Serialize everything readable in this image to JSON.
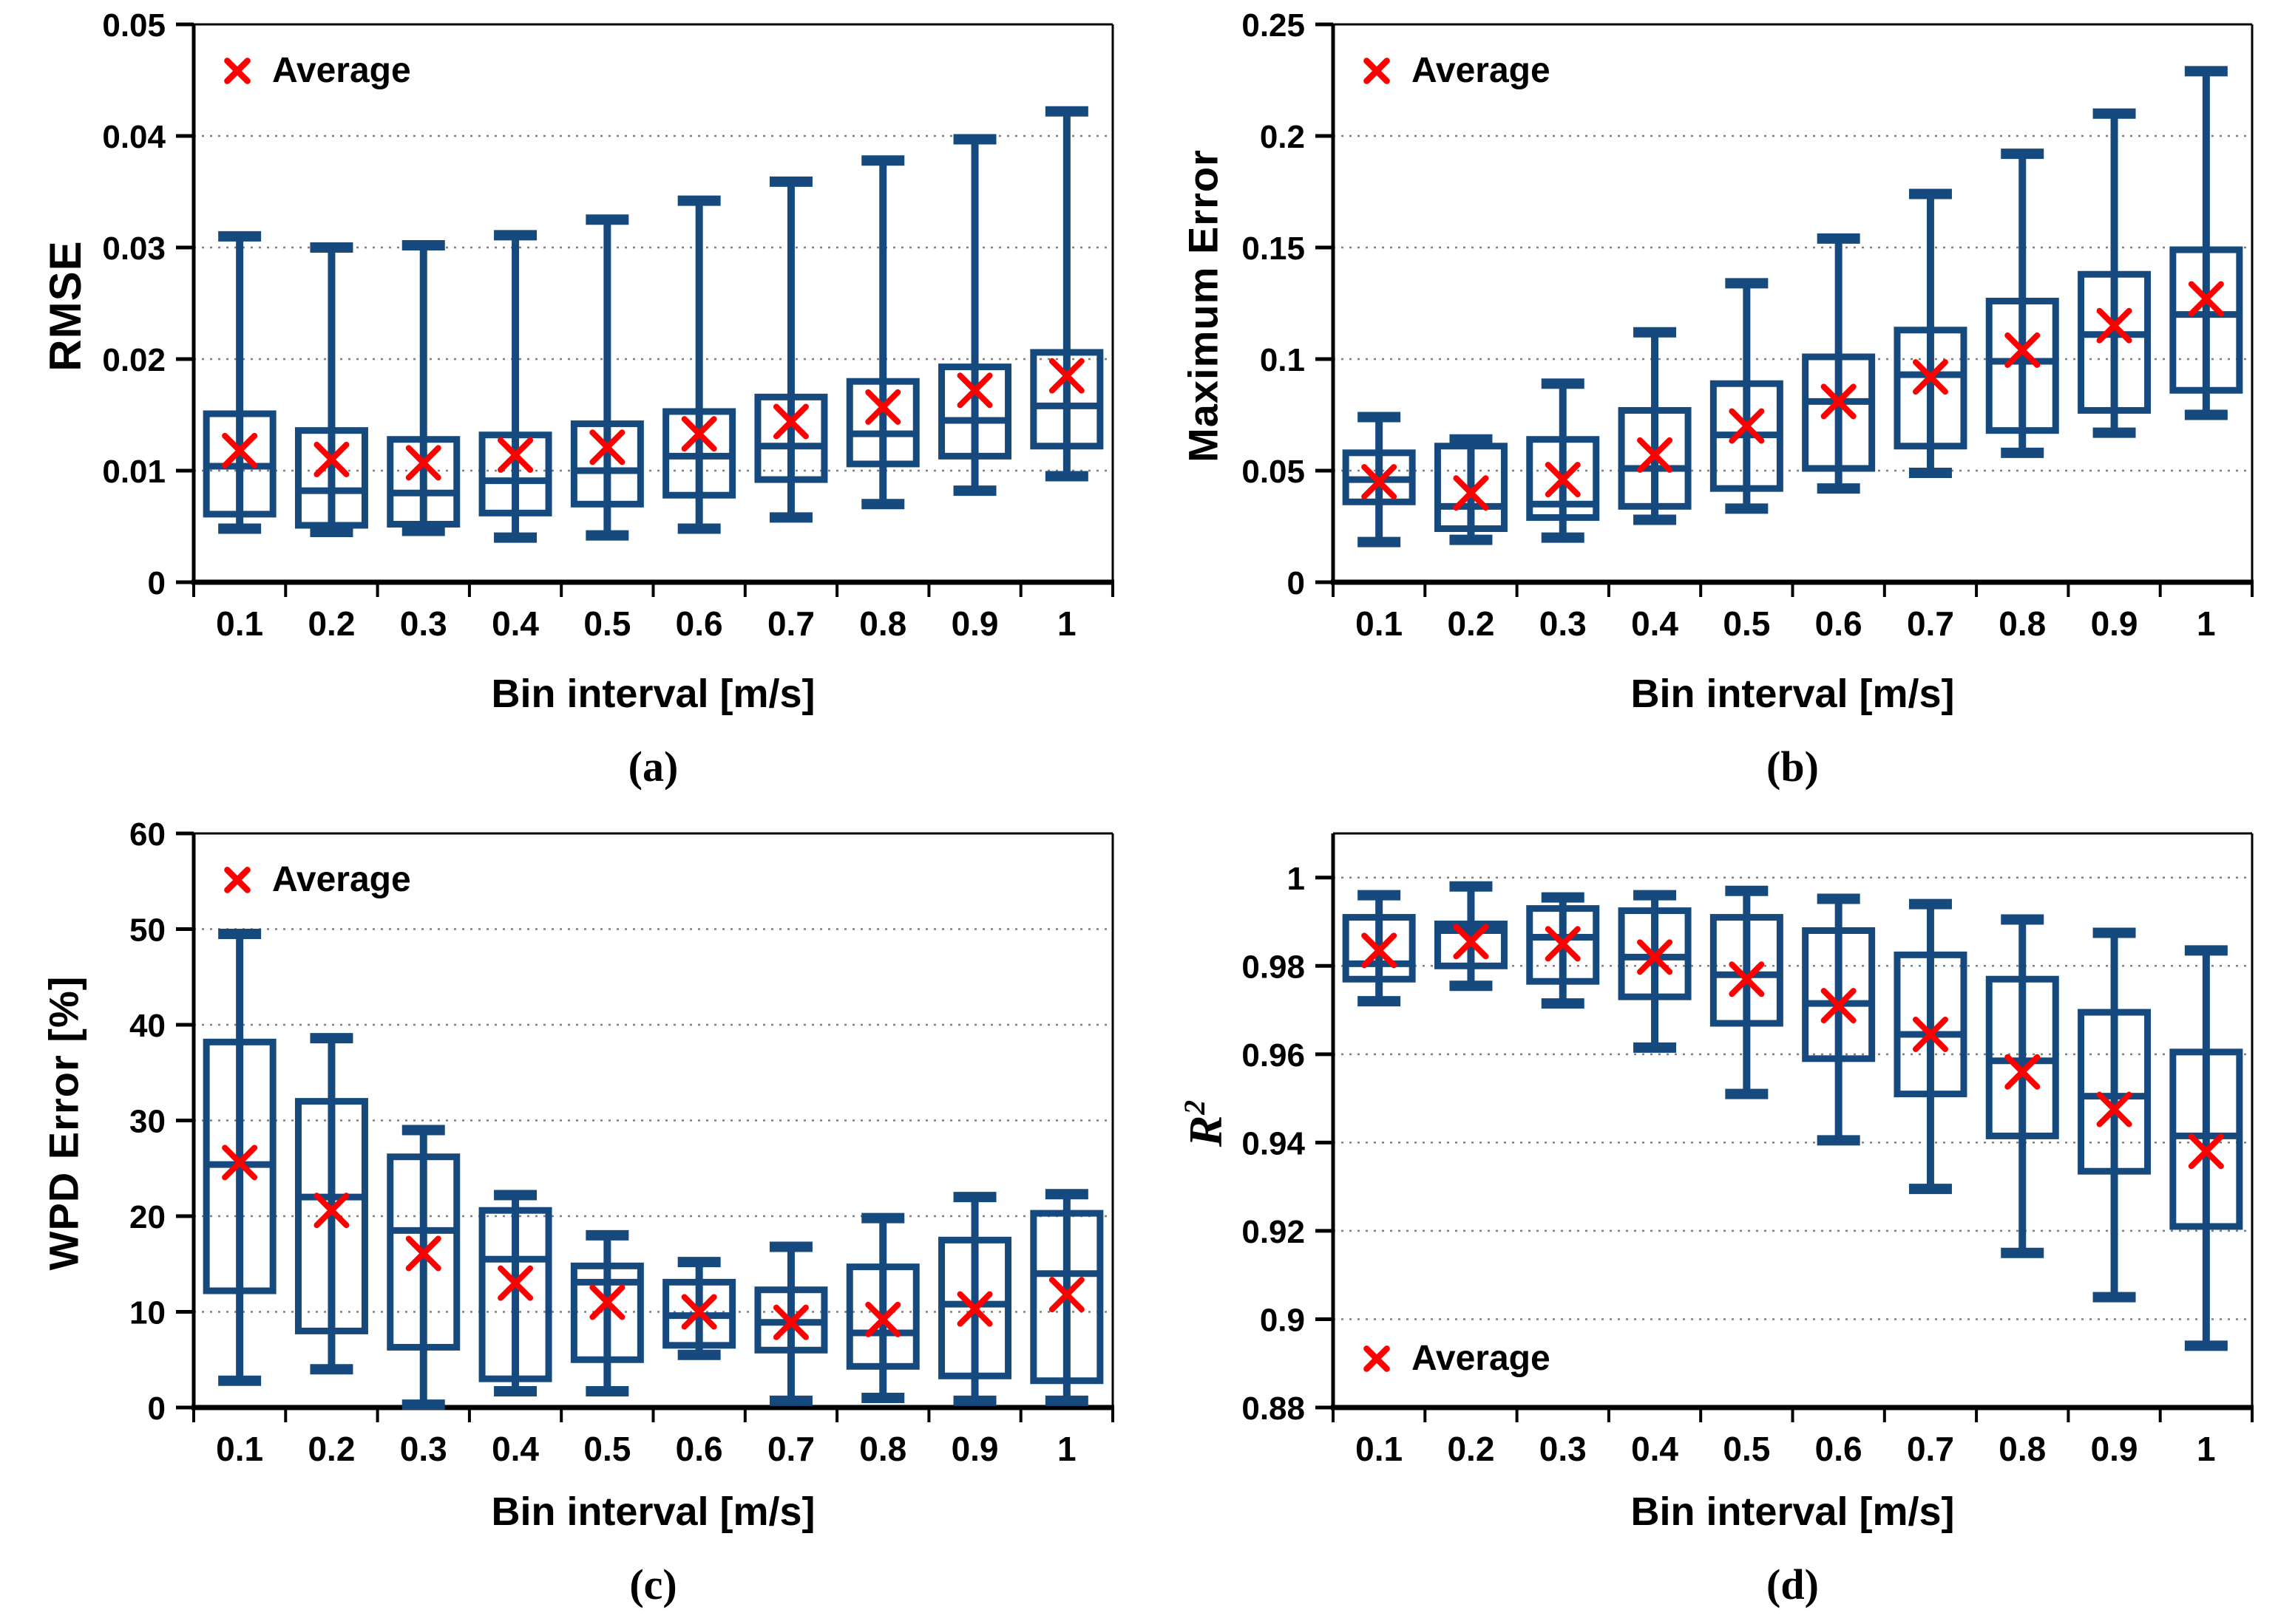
{
  "figure": {
    "background": "#ffffff",
    "panel_captions": [
      "(a)",
      "(b)",
      "(c)",
      "(d)"
    ]
  },
  "colors": {
    "box": "#164a7e",
    "average_marker": "#ff0000",
    "grid": "#7f7f7f",
    "axis": "#000000",
    "text": "#000000",
    "background": "#ffffff"
  },
  "chart_data": [
    {
      "id": "a",
      "type": "boxplot",
      "ylabel": "RMSE",
      "ylabel_sup": "",
      "xlabel": "Bin interval [m/s]",
      "caption": "(a)",
      "legend_label": "Average",
      "legend_marker": "x-marker",
      "legend_position": "top-left",
      "grid": "horizontal-dotted",
      "categories": [
        "0.1",
        "0.2",
        "0.3",
        "0.4",
        "0.5",
        "0.6",
        "0.7",
        "0.8",
        "0.9",
        "1"
      ],
      "ylim": [
        0,
        0.05
      ],
      "yticks": [
        0,
        0.01,
        0.02,
        0.03,
        0.04,
        0.05
      ],
      "ytick_labels": [
        "0",
        "0.01",
        "0.02",
        "0.03",
        "0.04",
        "0.05"
      ],
      "series": {
        "whisker_low": [
          0.0048,
          0.0045,
          0.0046,
          0.004,
          0.0042,
          0.0048,
          0.0058,
          0.007,
          0.0082,
          0.0095
        ],
        "q1": [
          0.0061,
          0.0051,
          0.0052,
          0.0062,
          0.007,
          0.0078,
          0.0092,
          0.0106,
          0.0113,
          0.0122
        ],
        "median": [
          0.0104,
          0.0082,
          0.008,
          0.0091,
          0.01,
          0.0113,
          0.0122,
          0.0133,
          0.0145,
          0.0158
        ],
        "q3": [
          0.0151,
          0.0136,
          0.0128,
          0.0132,
          0.0142,
          0.0153,
          0.0166,
          0.018,
          0.0193,
          0.0206
        ],
        "whisker_high": [
          0.031,
          0.03,
          0.0302,
          0.0311,
          0.0325,
          0.0342,
          0.0359,
          0.0378,
          0.0397,
          0.0422
        ],
        "average": [
          0.0118,
          0.011,
          0.0107,
          0.0114,
          0.0121,
          0.0133,
          0.0144,
          0.0157,
          0.0172,
          0.0185
        ]
      }
    },
    {
      "id": "b",
      "type": "boxplot",
      "ylabel": "Maximum Error",
      "ylabel_sup": "",
      "xlabel": "Bin interval [m/s]",
      "caption": "(b)",
      "legend_label": "Average",
      "legend_marker": "x-marker",
      "legend_position": "top-left",
      "grid": "horizontal-dotted",
      "categories": [
        "0.1",
        "0.2",
        "0.3",
        "0.4",
        "0.5",
        "0.6",
        "0.7",
        "0.8",
        "0.9",
        "1"
      ],
      "ylim": [
        0,
        0.25
      ],
      "yticks": [
        0,
        0.05,
        0.1,
        0.15,
        0.2,
        0.25
      ],
      "ytick_labels": [
        "0",
        "0.05",
        "0.1",
        "0.15",
        "0.2",
        "0.25"
      ],
      "series": {
        "whisker_low": [
          0.018,
          0.019,
          0.02,
          0.028,
          0.033,
          0.042,
          0.049,
          0.058,
          0.067,
          0.075
        ],
        "q1": [
          0.036,
          0.024,
          0.029,
          0.034,
          0.042,
          0.051,
          0.061,
          0.068,
          0.077,
          0.086
        ],
        "median": [
          0.046,
          0.034,
          0.035,
          0.051,
          0.066,
          0.081,
          0.093,
          0.099,
          0.111,
          0.12
        ],
        "q3": [
          0.058,
          0.061,
          0.064,
          0.077,
          0.089,
          0.101,
          0.113,
          0.126,
          0.138,
          0.149
        ],
        "whisker_high": [
          0.074,
          0.064,
          0.089,
          0.112,
          0.134,
          0.154,
          0.174,
          0.192,
          0.21,
          0.229
        ],
        "average": [
          0.045,
          0.04,
          0.046,
          0.057,
          0.07,
          0.081,
          0.092,
          0.104,
          0.115,
          0.127
        ]
      }
    },
    {
      "id": "c",
      "type": "boxplot",
      "ylabel": "WPD Error [%]",
      "ylabel_sup": "",
      "xlabel": "Bin interval [m/s]",
      "caption": "(c)",
      "legend_label": "Average",
      "legend_marker": "x-marker",
      "legend_position": "top-left",
      "grid": "horizontal-dotted",
      "categories": [
        "0.1",
        "0.2",
        "0.3",
        "0.4",
        "0.5",
        "0.6",
        "0.7",
        "0.8",
        "0.9",
        "1"
      ],
      "ylim": [
        0,
        60
      ],
      "yticks": [
        0,
        10,
        20,
        30,
        40,
        50,
        60
      ],
      "ytick_labels": [
        "0",
        "10",
        "20",
        "30",
        "40",
        "50",
        "60"
      ],
      "series": {
        "whisker_low": [
          2.8,
          4.0,
          0.3,
          1.7,
          1.7,
          5.5,
          0.7,
          1.0,
          0.7,
          0.7
        ],
        "q1": [
          12.2,
          8.0,
          6.3,
          3.0,
          5.0,
          6.5,
          6.0,
          4.3,
          3.3,
          2.8
        ],
        "median": [
          25.4,
          22.0,
          18.5,
          15.5,
          13.1,
          9.6,
          8.9,
          7.8,
          10.8,
          14.0
        ],
        "q3": [
          38.2,
          32.0,
          26.2,
          20.6,
          14.8,
          13.1,
          12.3,
          14.7,
          17.5,
          20.3
        ],
        "whisker_high": [
          49.5,
          38.6,
          29.0,
          22.2,
          18.0,
          15.2,
          16.8,
          19.8,
          22.0,
          22.3
        ],
        "average": [
          25.6,
          20.6,
          16.1,
          13.0,
          11.0,
          10.0,
          8.9,
          9.2,
          10.3,
          11.8
        ]
      }
    },
    {
      "id": "d",
      "type": "boxplot",
      "ylabel": "R",
      "ylabel_sup": "2",
      "xlabel": "Bin interval [m/s]",
      "caption": "(d)",
      "legend_label": "Average",
      "legend_marker": "x-marker",
      "legend_position": "bottom-left",
      "grid": "horizontal-dotted",
      "categories": [
        "0.1",
        "0.2",
        "0.3",
        "0.4",
        "0.5",
        "0.6",
        "0.7",
        "0.8",
        "0.9",
        "1"
      ],
      "ylim": [
        0.88,
        1.01
      ],
      "yticks": [
        0.88,
        0.9,
        0.92,
        0.94,
        0.96,
        0.98,
        1
      ],
      "ytick_labels": [
        "0.88",
        "0.9",
        "0.92",
        "0.94",
        "0.96",
        "0.98",
        "1"
      ],
      "series": {
        "whisker_low": [
          0.972,
          0.9755,
          0.9715,
          0.9615,
          0.951,
          0.9405,
          0.9295,
          0.915,
          0.905,
          0.894
        ],
        "q1": [
          0.977,
          0.98,
          0.9765,
          0.973,
          0.967,
          0.959,
          0.951,
          0.9415,
          0.9335,
          0.921
        ],
        "median": [
          0.9805,
          0.988,
          0.9865,
          0.982,
          0.978,
          0.9715,
          0.9645,
          0.9585,
          0.9505,
          0.9415
        ],
        "q3": [
          0.991,
          0.9895,
          0.993,
          0.9925,
          0.991,
          0.988,
          0.9825,
          0.977,
          0.9695,
          0.9605
        ],
        "whisker_high": [
          0.996,
          0.998,
          0.9955,
          0.996,
          0.997,
          0.9952,
          0.994,
          0.9905,
          0.9875,
          0.9835
        ],
        "average": [
          0.9835,
          0.9855,
          0.985,
          0.982,
          0.977,
          0.971,
          0.9645,
          0.956,
          0.9475,
          0.938
        ]
      }
    }
  ]
}
